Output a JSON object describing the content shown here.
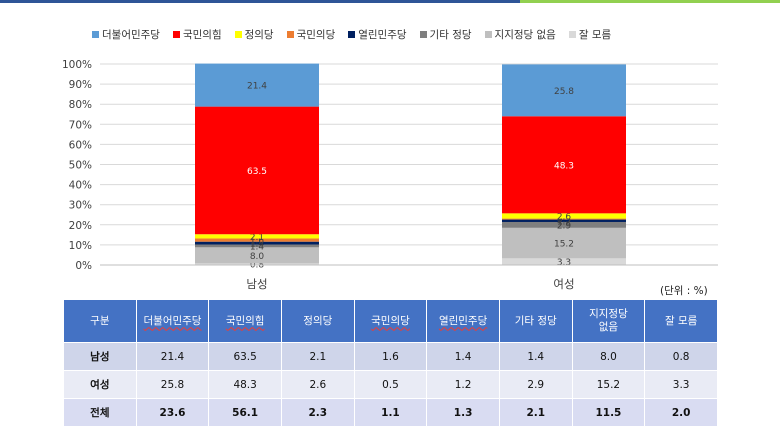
{
  "chart_data": {
    "type": "bar",
    "stacked": true,
    "categories": [
      "남성",
      "여성"
    ],
    "series": [
      {
        "name": "잘 모름",
        "color": "#d9d9d9",
        "values": [
          0.8,
          3.3
        ]
      },
      {
        "name": "지지정당 없음",
        "color": "#bfbfbf",
        "values": [
          8.0,
          15.2
        ]
      },
      {
        "name": "기타 정당",
        "color": "#7f7f7f",
        "values": [
          1.4,
          2.9
        ]
      },
      {
        "name": "열린민주당",
        "color": "#002060",
        "values": [
          1.4,
          1.2
        ]
      },
      {
        "name": "국민의당",
        "color": "#ed7d31",
        "values": [
          1.6,
          0.5
        ]
      },
      {
        "name": "정의당",
        "color": "#ffff00",
        "values": [
          2.1,
          2.6
        ]
      },
      {
        "name": "국민의힘",
        "color": "#ff0000",
        "values": [
          63.5,
          48.3
        ]
      },
      {
        "name": "더불어민주당",
        "color": "#5b9bd5",
        "values": [
          21.4,
          25.8
        ]
      }
    ],
    "legend_order": [
      "더불어민주당",
      "국민의힘",
      "정의당",
      "국민의당",
      "열린민주당",
      "기타 정당",
      "지지정당 없음",
      "잘 모름"
    ],
    "y_ticks": [
      "0%",
      "10%",
      "20%",
      "30%",
      "40%",
      "50%",
      "60%",
      "70%",
      "80%",
      "90%",
      "100%"
    ],
    "ylim": [
      0,
      100
    ],
    "grid": true,
    "legend_position": "top",
    "bar_labels": {
      "남성": [
        "0.8",
        "8.0",
        "1.4",
        "1.4",
        "1.6",
        "2.1",
        "63.5",
        "21.4"
      ],
      "여성": [
        "3.3",
        "15.2",
        "2.9",
        "1.2",
        "0.5",
        "2.6",
        "48.3",
        "25.8"
      ]
    }
  },
  "unit_label": "(단위 : %)",
  "table": {
    "headers": [
      "구분",
      "더불어민주당",
      "국민의힘",
      "정의당",
      "국민의당",
      "열린민주당",
      "기타 정당",
      "지지정당 없음",
      "잘 모름"
    ],
    "rows": [
      [
        "남성",
        "21.4",
        "63.5",
        "2.1",
        "1.6",
        "1.4",
        "1.4",
        "8.0",
        "0.8"
      ],
      [
        "여성",
        "25.8",
        "48.3",
        "2.6",
        "0.5",
        "1.2",
        "2.9",
        "15.2",
        "3.3"
      ],
      [
        "전체",
        "23.6",
        "56.1",
        "2.3",
        "1.1",
        "1.3",
        "2.1",
        "11.5",
        "2.0"
      ]
    ]
  }
}
